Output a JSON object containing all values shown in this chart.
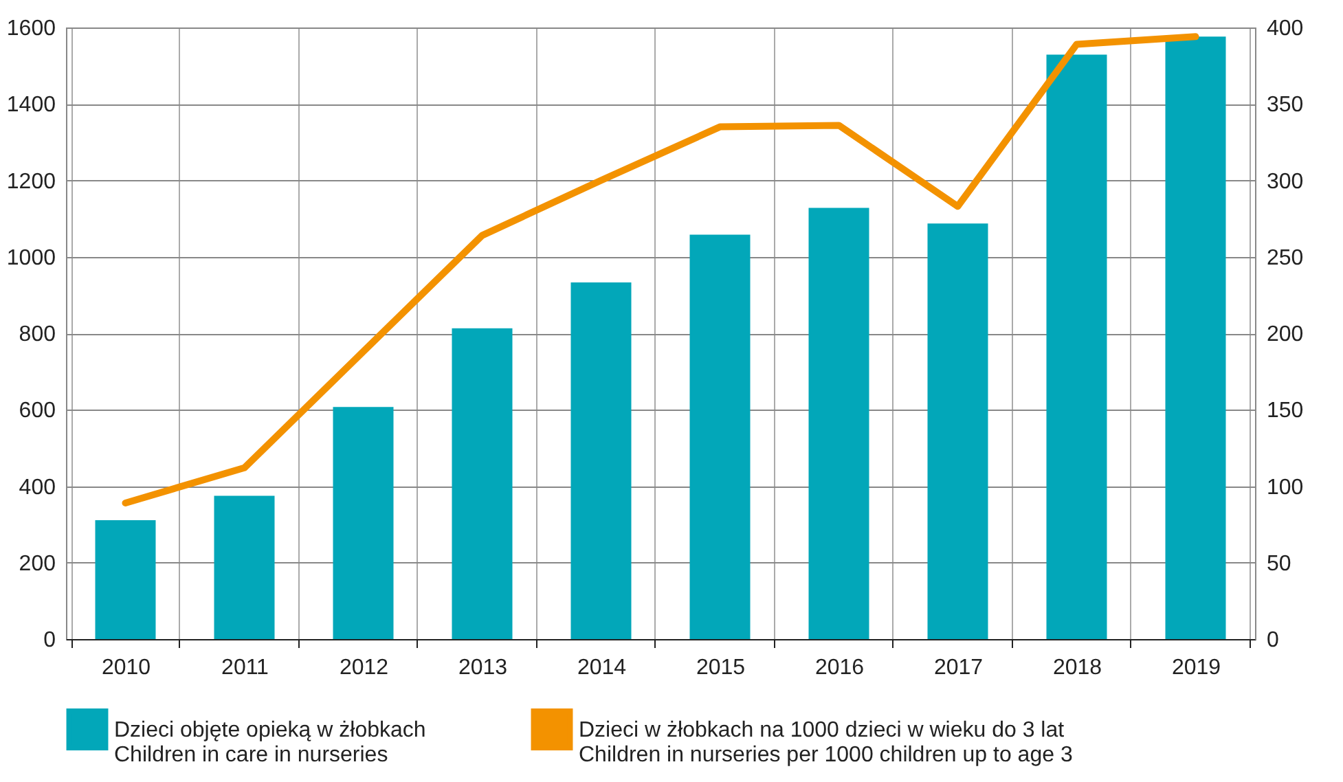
{
  "chart_data": {
    "type": "bar",
    "categories": [
      "2010",
      "2011",
      "2012",
      "2013",
      "2014",
      "2015",
      "2016",
      "2017",
      "2018",
      "2019"
    ],
    "series": [
      {
        "name": "Dzieci objęte opieką w żłobkach\nChildren in care in nurseries",
        "color": "#02a7b9",
        "values": [
          311,
          375,
          607,
          813,
          933,
          1058,
          1128,
          1087,
          1529,
          1576
        ]
      },
      {
        "name": "Dzieci w żłobkach na 1000 dzieci w wieku do 3 lat\nChildren in nurseries per 1000 children up to age 3",
        "type": "line",
        "axis": "y2",
        "color": "#f39200",
        "values": [
          89,
          112,
          188,
          264,
          300,
          335,
          336,
          283,
          389,
          394
        ]
      }
    ],
    "ylim": [
      0,
      1600
    ],
    "yticks": [
      0,
      200,
      400,
      600,
      800,
      1000,
      1200,
      1400,
      1600
    ],
    "y2lim": [
      0,
      400
    ],
    "y2ticks": [
      0,
      50,
      100,
      150,
      200,
      250,
      300,
      350,
      400
    ],
    "grid": true,
    "legend": "bottom",
    "line_style": "solid"
  }
}
